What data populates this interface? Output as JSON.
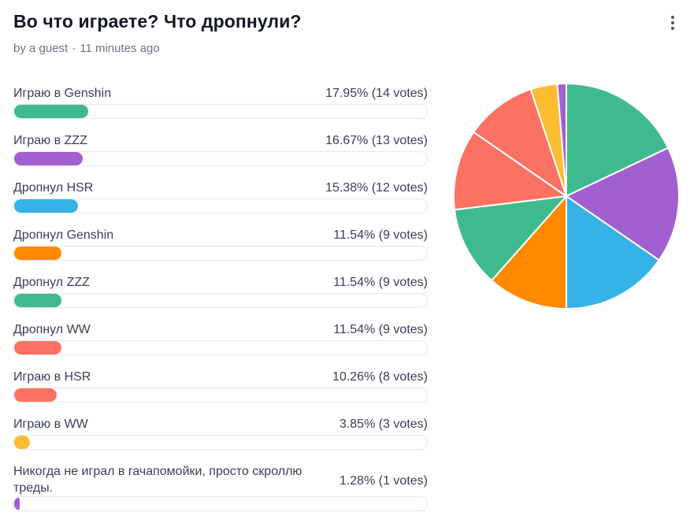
{
  "poll": {
    "title": "Во что играете? Что дропнули?",
    "author": "by a guest",
    "separator": "·",
    "time": "11 minutes ago"
  },
  "options": [
    {
      "label": "Играю в Genshin",
      "result": "17.95% (14 votes)",
      "percent": 17.95,
      "color": "#3fba8f"
    },
    {
      "label": "Играю в ZZZ",
      "result": "16.67% (13 votes)",
      "percent": 16.67,
      "color": "#a25fd0"
    },
    {
      "label": "Дропнул HSR",
      "result": "15.38% (12 votes)",
      "percent": 15.38,
      "color": "#36b3e6"
    },
    {
      "label": "Дропнул Genshin",
      "result": "11.54% (9 votes)",
      "percent": 11.54,
      "color": "#ff8a00"
    },
    {
      "label": "Дропнул ZZZ",
      "result": "11.54% (9 votes)",
      "percent": 11.54,
      "color": "#3fba8f"
    },
    {
      "label": "Дропнул WW",
      "result": "11.54% (9 votes)",
      "percent": 11.54,
      "color": "#fc7262"
    },
    {
      "label": "Играю в HSR",
      "result": "10.26% (8 votes)",
      "percent": 10.26,
      "color": "#fc7262"
    },
    {
      "label": "Играю в WW",
      "result": "3.85% (3 votes)",
      "percent": 3.85,
      "color": "#fbbd31"
    },
    {
      "label": "Никогда не играл в гачапомойки, просто скроллю треды.",
      "result": "1.28% (1 votes)",
      "percent": 1.28,
      "color": "#a25fd0"
    }
  ],
  "chart_data": {
    "type": "pie",
    "categories": [
      "Играю в Genshin",
      "Играю в ZZZ",
      "Дропнул HSR",
      "Дропнул Genshin",
      "Дропнул ZZZ",
      "Дропнул WW",
      "Играю в HSR",
      "Играю в WW",
      "Никогда не играл в гачапомойки, просто скроллю треды."
    ],
    "values": [
      14,
      13,
      12,
      9,
      9,
      9,
      8,
      3,
      1
    ],
    "colors": [
      "#3fba8f",
      "#a25fd0",
      "#36b3e6",
      "#ff8a00",
      "#3fba8f",
      "#fc7262",
      "#fc7262",
      "#fbbd31",
      "#a25fd0"
    ]
  }
}
